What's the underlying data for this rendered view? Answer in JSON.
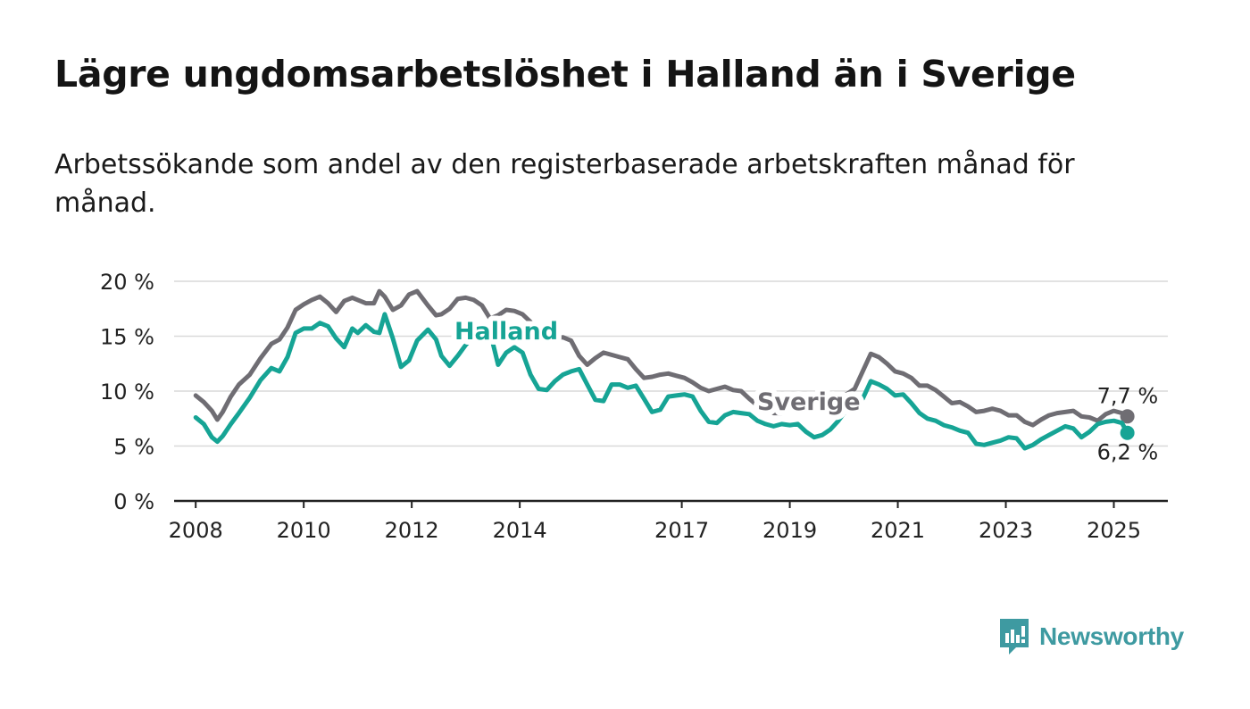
{
  "title": "Lägre ungdomsarbetslöshet i Halland än i Sverige",
  "subtitle": "Arbetssökande som andel av den registerbaserade arbetskraften månad för månad.",
  "brand": {
    "name": "Newsworthy",
    "icon": "newsworthy-logo-icon",
    "color": "#3e9aa1"
  },
  "chart_data": {
    "type": "line",
    "xlim": [
      2007.6,
      2026.0
    ],
    "ylim": [
      0,
      20
    ],
    "yticks": [
      0,
      5,
      10,
      15,
      20
    ],
    "ytick_labels": [
      "0 %",
      "5 %",
      "10 %",
      "15 %",
      "20 %"
    ],
    "xticks": [
      2008,
      2010,
      2012,
      2014,
      2017,
      2019,
      2021,
      2023,
      2025
    ],
    "xtick_labels": [
      "2008",
      "2010",
      "2012",
      "2014",
      "2017",
      "2019",
      "2021",
      "2023",
      "2025"
    ],
    "grid": true,
    "series": [
      {
        "name": "Sverige",
        "color": "#6f6d73",
        "end_label": "7,7 %",
        "x": [
          2008.0,
          2008.15,
          2008.3,
          2008.4,
          2008.5,
          2008.65,
          2008.8,
          2009.0,
          2009.2,
          2009.4,
          2009.55,
          2009.7,
          2009.85,
          2010.0,
          2010.15,
          2010.3,
          2010.45,
          2010.6,
          2010.75,
          2010.9,
          2011.0,
          2011.15,
          2011.3,
          2011.4,
          2011.5,
          2011.65,
          2011.8,
          2011.95,
          2012.1,
          2012.3,
          2012.45,
          2012.55,
          2012.7,
          2012.85,
          2013.0,
          2013.15,
          2013.3,
          2013.45,
          2013.6,
          2013.75,
          2013.9,
          2014.05,
          2014.2,
          2014.35,
          2014.5,
          2014.65,
          2014.8,
          2014.95,
          2015.1,
          2015.25,
          2015.4,
          2015.55,
          2015.7,
          2015.85,
          2016.0,
          2016.15,
          2016.3,
          2016.45,
          2016.6,
          2016.75,
          2016.9,
          2017.05,
          2017.2,
          2017.35,
          2017.5,
          2017.65,
          2017.8,
          2017.95,
          2018.1,
          2018.25,
          2018.4,
          2018.55,
          2018.7,
          2018.85,
          2019.0,
          2019.15,
          2019.3,
          2019.45,
          2019.6,
          2019.75,
          2019.9,
          2020.05,
          2020.2,
          2020.35,
          2020.5,
          2020.65,
          2020.8,
          2020.95,
          2021.1,
          2021.25,
          2021.4,
          2021.55,
          2021.7,
          2021.85,
          2022.0,
          2022.15,
          2022.3,
          2022.45,
          2022.6,
          2022.75,
          2022.9,
          2023.05,
          2023.2,
          2023.35,
          2023.5,
          2023.65,
          2023.8,
          2023.95,
          2024.1,
          2024.25,
          2024.4,
          2024.55,
          2024.7,
          2024.85,
          2025.0,
          2025.15,
          2025.25
        ],
        "values": [
          9.6,
          9.0,
          8.2,
          7.4,
          8.1,
          9.5,
          10.6,
          11.5,
          13.0,
          14.3,
          14.7,
          15.8,
          17.4,
          17.9,
          18.3,
          18.6,
          18.0,
          17.2,
          18.2,
          18.5,
          18.3,
          18.0,
          18.0,
          19.1,
          18.6,
          17.4,
          17.8,
          18.8,
          19.1,
          17.8,
          16.9,
          17.0,
          17.5,
          18.4,
          18.5,
          18.3,
          17.8,
          16.6,
          16.9,
          17.4,
          17.3,
          17.0,
          16.3,
          15.3,
          15.0,
          14.8,
          14.9,
          14.6,
          13.2,
          12.4,
          13.0,
          13.5,
          13.3,
          13.1,
          12.9,
          12.0,
          11.2,
          11.3,
          11.5,
          11.6,
          11.4,
          11.2,
          10.8,
          10.3,
          10.0,
          10.2,
          10.4,
          10.1,
          10.0,
          9.3,
          8.7,
          8.3,
          8.0,
          8.0,
          8.4,
          8.8,
          9.0,
          9.3,
          9.5,
          9.6,
          9.6,
          9.7,
          10.2,
          11.8,
          13.4,
          13.1,
          12.5,
          11.8,
          11.6,
          11.2,
          10.5,
          10.5,
          10.1,
          9.5,
          8.9,
          9.0,
          8.6,
          8.1,
          8.2,
          8.4,
          8.2,
          7.8,
          7.8,
          7.2,
          6.9,
          7.4,
          7.8,
          8.0,
          8.1,
          8.2,
          7.7,
          7.6,
          7.3,
          7.9,
          8.2,
          8.0,
          7.7
        ],
        "color_hex": "#6f6d73"
      },
      {
        "name": "Halland",
        "color": "#16a495",
        "end_label": "6,2 %",
        "x": [
          2008.0,
          2008.15,
          2008.3,
          2008.4,
          2008.5,
          2008.65,
          2008.8,
          2009.0,
          2009.2,
          2009.4,
          2009.55,
          2009.7,
          2009.85,
          2010.0,
          2010.15,
          2010.3,
          2010.45,
          2010.6,
          2010.75,
          2010.9,
          2011.0,
          2011.15,
          2011.3,
          2011.4,
          2011.5,
          2011.65,
          2011.8,
          2011.95,
          2012.1,
          2012.3,
          2012.45,
          2012.55,
          2012.7,
          2012.85,
          2013.0,
          2013.15,
          2013.3,
          2013.45,
          2013.6,
          2013.75,
          2013.9,
          2014.05,
          2014.2,
          2014.35,
          2014.5,
          2014.65,
          2014.8,
          2014.95,
          2015.1,
          2015.25,
          2015.4,
          2015.55,
          2015.7,
          2015.85,
          2016.0,
          2016.15,
          2016.3,
          2016.45,
          2016.6,
          2016.75,
          2016.9,
          2017.05,
          2017.2,
          2017.35,
          2017.5,
          2017.65,
          2017.8,
          2017.95,
          2018.1,
          2018.25,
          2018.4,
          2018.55,
          2018.7,
          2018.85,
          2019.0,
          2019.15,
          2019.3,
          2019.45,
          2019.6,
          2019.75,
          2019.9,
          2020.05,
          2020.2,
          2020.35,
          2020.5,
          2020.65,
          2020.8,
          2020.95,
          2021.1,
          2021.25,
          2021.4,
          2021.55,
          2021.7,
          2021.85,
          2022.0,
          2022.15,
          2022.3,
          2022.45,
          2022.6,
          2022.75,
          2022.9,
          2023.05,
          2023.2,
          2023.35,
          2023.5,
          2023.65,
          2023.8,
          2023.95,
          2024.1,
          2024.25,
          2024.4,
          2024.55,
          2024.7,
          2024.85,
          2025.0,
          2025.15,
          2025.25
        ],
        "values": [
          7.6,
          7.0,
          5.8,
          5.4,
          5.9,
          7.0,
          8.0,
          9.4,
          11.0,
          12.1,
          11.8,
          13.1,
          15.3,
          15.7,
          15.7,
          16.2,
          15.9,
          14.8,
          14.0,
          15.7,
          15.3,
          16.0,
          15.4,
          15.3,
          17.0,
          14.8,
          12.2,
          12.8,
          14.6,
          15.6,
          14.7,
          13.2,
          12.3,
          13.2,
          14.2,
          15.0,
          15.8,
          15.4,
          12.4,
          13.5,
          14.0,
          13.5,
          11.5,
          10.2,
          10.1,
          10.9,
          11.5,
          11.8,
          12.0,
          10.6,
          9.2,
          9.1,
          10.6,
          10.6,
          10.3,
          10.5,
          9.3,
          8.1,
          8.3,
          9.5,
          9.6,
          9.7,
          9.5,
          8.2,
          7.2,
          7.1,
          7.8,
          8.1,
          8.0,
          7.9,
          7.3,
          7.0,
          6.8,
          7.0,
          6.9,
          7.0,
          6.3,
          5.8,
          6.0,
          6.5,
          7.3,
          8.3,
          8.7,
          9.3,
          10.9,
          10.6,
          10.2,
          9.6,
          9.7,
          8.9,
          8.0,
          7.5,
          7.3,
          6.9,
          6.7,
          6.4,
          6.2,
          5.2,
          5.1,
          5.3,
          5.5,
          5.8,
          5.7,
          4.8,
          5.1,
          5.6,
          6.0,
          6.4,
          6.8,
          6.6,
          5.8,
          6.3,
          7.0,
          7.2,
          7.3,
          7.1,
          6.2
        ]
      }
    ],
    "annotations": [
      {
        "text": "Halland",
        "series": "Halland",
        "x": 2013.75,
        "y": 14.7
      },
      {
        "text": "Sverige",
        "series": "Sverige",
        "x": 2019.35,
        "y": 8.3
      }
    ]
  }
}
